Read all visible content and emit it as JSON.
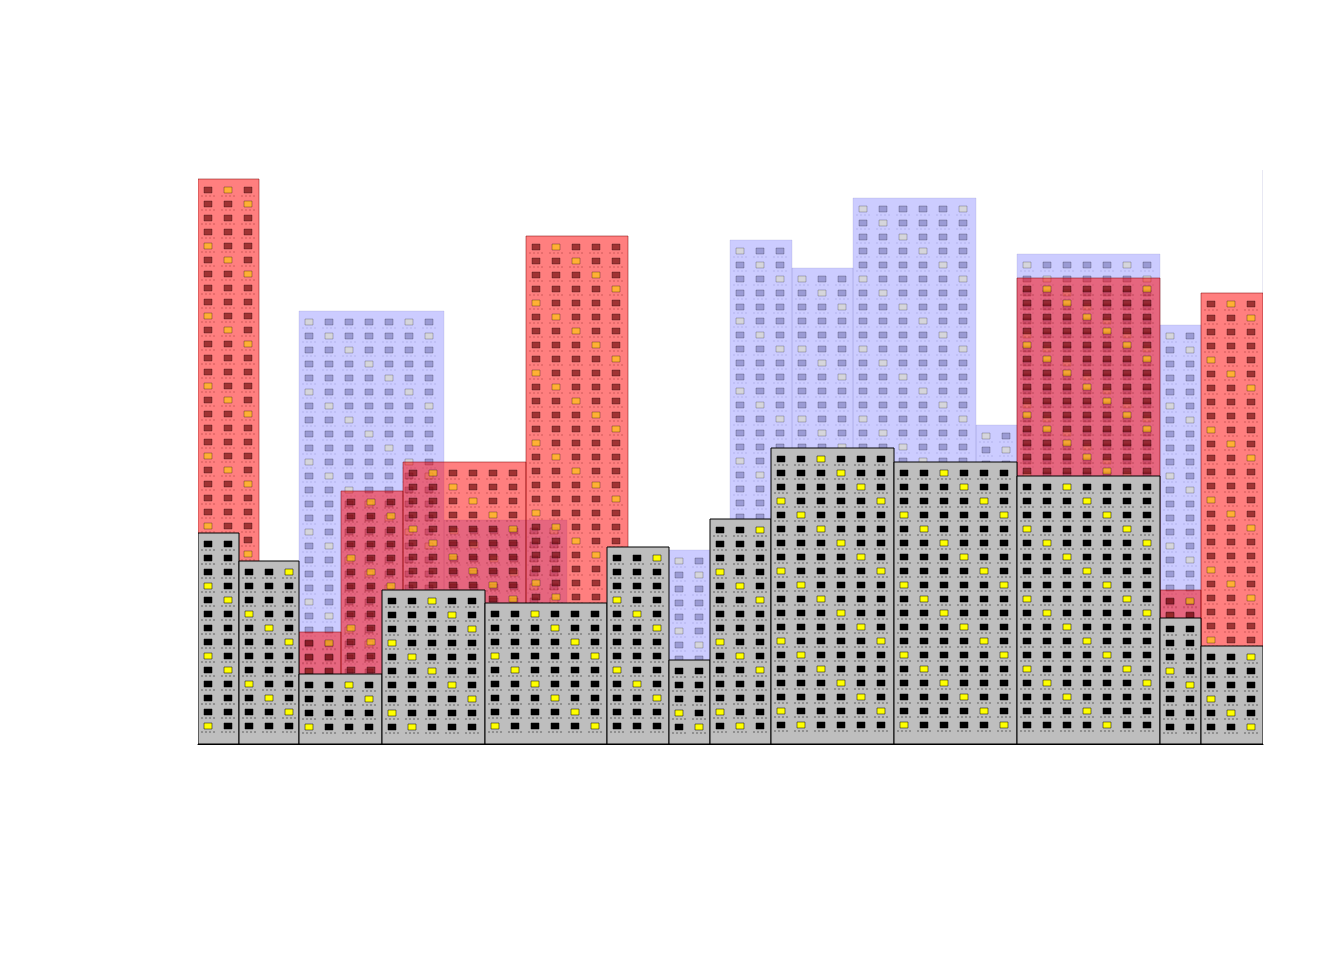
{
  "chart_data": {
    "type": "skyline",
    "xlim": [
      0,
      1065
    ],
    "ylim": [
      0,
      600
    ],
    "tick_labels": false,
    "series": [
      {
        "color": "#0000ff",
        "x": [
          101,
          246,
          471,
          532,
          594,
          655,
          778,
          819,
          962,
          1065
        ],
        "widths": [
          145,
          123,
          61,
          62,
          61,
          123,
          41,
          143,
          41,
          41
        ],
        "values": [
          433,
          224,
          194,
          504,
          476,
          546,
          319,
          490,
          419,
          574
        ]
      },
      {
        "color": "#ff0000",
        "x": [
          0,
          101,
          143,
          205,
          328,
          819,
          962,
          1003
        ],
        "widths": [
          61,
          42,
          62,
          123,
          102,
          143,
          41,
          62
        ],
        "values": [
          565,
          112,
          253,
          282,
          508,
          466,
          154,
          451
        ]
      },
      {
        "color": "#bebebe",
        "x": [
          0,
          41,
          101,
          184,
          287,
          409,
          471,
          512,
          573,
          696,
          819,
          962,
          1003
        ],
        "widths": [
          41,
          60,
          83,
          103,
          122,
          62,
          41,
          61,
          123,
          123,
          143,
          41,
          62
        ],
        "values": [
          211,
          183,
          70,
          154,
          141,
          197,
          84,
          225,
          296,
          282,
          268,
          126,
          98
        ]
      }
    ]
  }
}
